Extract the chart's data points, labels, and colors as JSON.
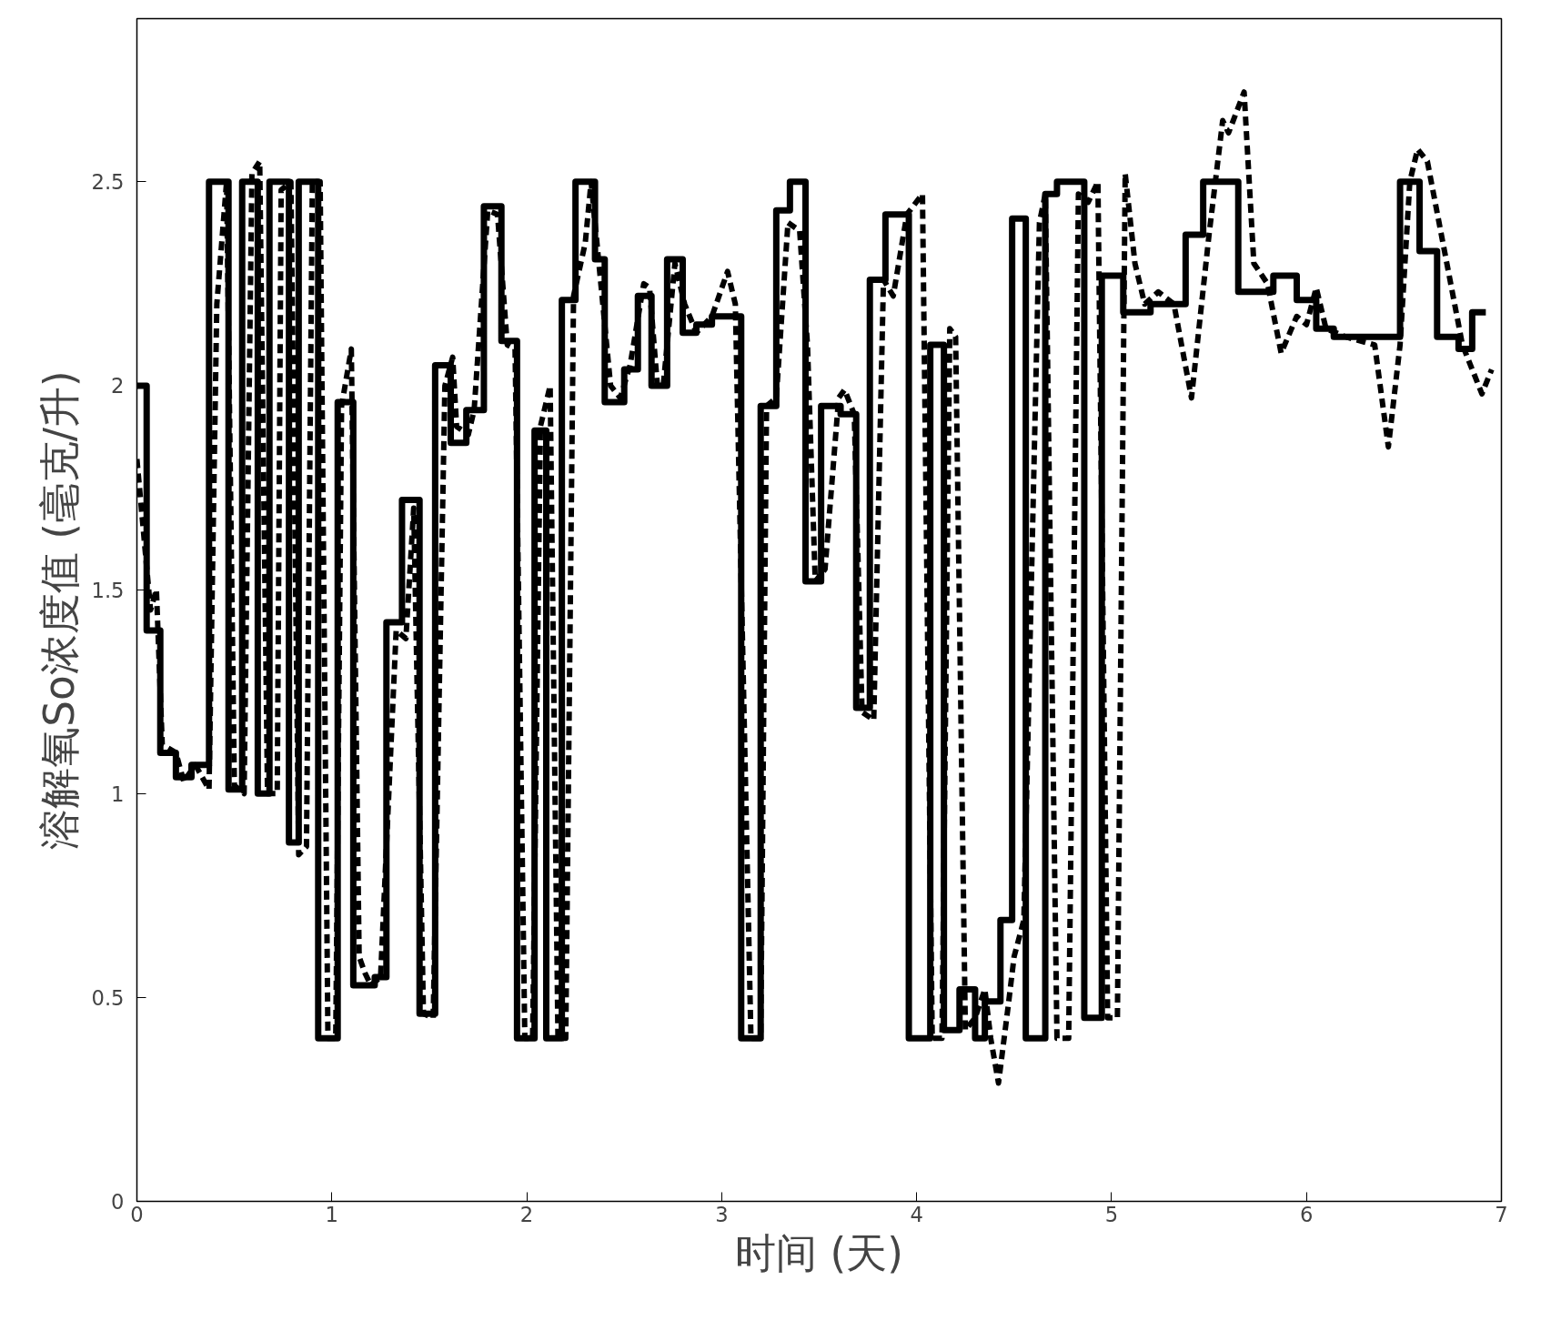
{
  "chart_data": {
    "type": "line",
    "xlabel": "时间 (天)",
    "ylabel": "溶解氧So浓度值 (毫克/升)",
    "xlim": [
      0,
      7
    ],
    "ylim": [
      0,
      2.9
    ],
    "xticks": [
      0,
      1,
      2,
      3,
      4,
      5,
      6,
      7
    ],
    "yticks": [
      0,
      0.5,
      1,
      1.5,
      2,
      2.5
    ],
    "grid": false,
    "series": [
      {
        "type": "step",
        "color": "#000000",
        "line_style": "solid",
        "x": [
          0,
          0.05,
          0.12,
          0.2,
          0.28,
          0.37,
          0.47,
          0.54,
          0.62,
          0.68,
          0.78,
          0.83,
          0.93,
          1.03,
          1.11,
          1.22,
          1.28,
          1.36,
          1.45,
          1.53,
          1.61,
          1.69,
          1.78,
          1.87,
          1.95,
          2.04,
          2.1,
          2.18,
          2.25,
          2.35,
          2.4,
          2.5,
          2.57,
          2.64,
          2.72,
          2.8,
          2.87,
          2.95,
          3.1,
          3.2,
          3.28,
          3.35,
          3.43,
          3.51,
          3.61,
          3.69,
          3.76,
          3.84,
          3.96,
          4.07,
          4.14,
          4.22,
          4.3,
          4.35,
          4.43,
          4.49,
          4.56,
          4.66,
          4.72,
          4.86,
          4.95,
          5.06,
          5.2,
          5.38,
          5.47,
          5.65,
          5.83,
          5.95,
          6.05,
          6.14,
          6.48,
          6.58,
          6.67,
          6.78,
          6.85,
          6.92
        ],
        "values": [
          2.0,
          1.4,
          1.1,
          1.04,
          1.07,
          2.5,
          1.01,
          2.5,
          1.0,
          2.5,
          0.88,
          2.5,
          0.4,
          1.96,
          0.53,
          0.55,
          1.42,
          1.72,
          0.46,
          2.05,
          1.86,
          1.94,
          2.44,
          2.11,
          0.4,
          1.89,
          0.4,
          2.21,
          2.5,
          2.31,
          1.96,
          2.04,
          2.22,
          2.0,
          2.31,
          2.13,
          2.15,
          2.17,
          0.4,
          1.95,
          2.43,
          2.5,
          1.52,
          1.95,
          1.93,
          1.21,
          2.26,
          2.42,
          0.4,
          2.1,
          0.42,
          0.52,
          0.4,
          0.49,
          0.69,
          2.41,
          0.4,
          2.47,
          2.5,
          0.45,
          2.27,
          2.18,
          2.2,
          2.37,
          2.5,
          2.23,
          2.27,
          2.21,
          2.14,
          2.12,
          2.5,
          2.33,
          2.12,
          2.09,
          2.18,
          2.18
        ]
      },
      {
        "color": "#000000",
        "line_style": "dashed",
        "x": [
          0,
          0.07,
          0.1,
          0.13,
          0.2,
          0.24,
          0.3,
          0.37,
          0.41,
          0.46,
          0.5,
          0.55,
          0.59,
          0.63,
          0.67,
          0.72,
          0.74,
          0.79,
          0.83,
          0.87,
          0.9,
          0.94,
          0.98,
          1.02,
          1.05,
          1.1,
          1.14,
          1.17,
          1.2,
          1.25,
          1.33,
          1.38,
          1.42,
          1.47,
          1.52,
          1.58,
          1.62,
          1.64,
          1.7,
          1.73,
          1.8,
          1.85,
          1.9,
          1.94,
          1.99,
          2.03,
          2.07,
          2.12,
          2.16,
          2.2,
          2.24,
          2.3,
          2.33,
          2.37,
          2.43,
          2.48,
          2.53,
          2.6,
          2.63,
          2.67,
          2.7,
          2.76,
          2.81,
          2.87,
          2.95,
          3.03,
          3.07,
          3.15,
          3.2,
          3.23,
          3.28,
          3.34,
          3.4,
          3.44,
          3.48,
          3.53,
          3.6,
          3.63,
          3.68,
          3.72,
          3.78,
          3.83,
          3.88,
          3.95,
          4.03,
          4.08,
          4.13,
          4.17,
          4.2,
          4.25,
          4.3,
          4.35,
          4.38,
          4.42,
          4.47,
          4.5,
          4.55,
          4.63,
          4.66,
          4.72,
          4.78,
          4.83,
          4.88,
          4.93,
          4.98,
          5.03,
          5.07,
          5.12,
          5.17,
          5.24,
          5.32,
          5.41,
          5.5,
          5.57,
          5.6,
          5.68,
          5.73,
          5.8,
          5.87,
          5.95,
          6.0,
          6.05,
          6.1,
          6.2,
          6.35,
          6.42,
          6.48,
          6.53,
          6.57,
          6.62,
          6.7,
          6.8,
          6.9,
          6.95
        ],
        "values": [
          1.82,
          1.45,
          1.5,
          1.12,
          1.1,
          1.03,
          1.07,
          1.01,
          2.2,
          2.5,
          1.02,
          1.0,
          2.52,
          2.55,
          1.0,
          1.0,
          2.48,
          2.5,
          0.85,
          0.87,
          2.5,
          2.5,
          0.4,
          0.4,
          1.95,
          2.09,
          0.6,
          0.56,
          0.53,
          0.55,
          1.4,
          1.38,
          1.7,
          0.46,
          0.45,
          2.0,
          2.07,
          1.9,
          1.88,
          1.94,
          2.43,
          2.42,
          2.1,
          2.09,
          0.4,
          0.4,
          1.9,
          2.0,
          0.4,
          0.4,
          2.22,
          2.35,
          2.5,
          2.3,
          2.0,
          1.97,
          2.05,
          2.25,
          2.24,
          2.0,
          2.0,
          2.3,
          2.2,
          2.13,
          2.17,
          2.28,
          2.2,
          0.4,
          0.4,
          1.95,
          1.97,
          2.4,
          2.38,
          2.1,
          1.52,
          1.55,
          1.97,
          1.99,
          1.93,
          1.2,
          1.18,
          2.26,
          2.22,
          2.42,
          2.47,
          0.4,
          0.4,
          2.14,
          2.12,
          0.42,
          0.45,
          0.52,
          0.4,
          0.29,
          0.48,
          0.6,
          0.69,
          2.4,
          2.47,
          0.4,
          0.4,
          2.47,
          2.45,
          2.5,
          0.45,
          0.45,
          2.52,
          2.3,
          2.2,
          2.23,
          2.2,
          1.97,
          2.37,
          2.65,
          2.62,
          2.72,
          2.3,
          2.25,
          2.08,
          2.17,
          2.15,
          2.24,
          2.14,
          2.12,
          2.1,
          1.85,
          2.1,
          2.5,
          2.58,
          2.55,
          2.35,
          2.1,
          1.98,
          2.04
        ]
      }
    ]
  }
}
